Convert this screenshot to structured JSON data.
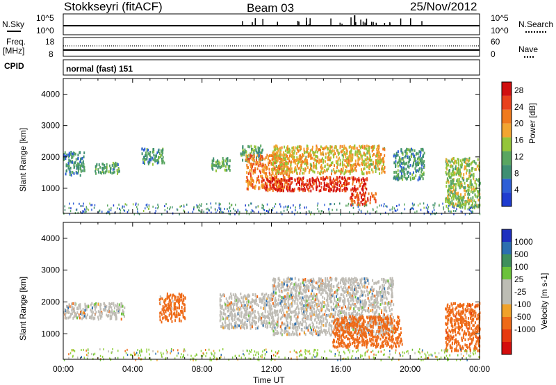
{
  "header": {
    "station": "Stokkseyri (fitACF)",
    "beam": "Beam 03",
    "date": "25/Nov/2012"
  },
  "nsky_panel": {
    "left_label": "N.Sky",
    "left_ticks": [
      "10^5",
      "10^0"
    ],
    "right_ticks": [
      "10^5",
      "10^0"
    ],
    "right_label": "N.Search"
  },
  "freq_panel": {
    "left_label_1": "Freq.",
    "left_label_2": "[MHz]",
    "left_ticks": [
      "18",
      "8"
    ],
    "right_ticks": [
      "60",
      "0"
    ],
    "right_label": "Nave"
  },
  "cpid_panel": {
    "label": "CPID",
    "mode": "normal (fast) 151"
  },
  "colors": {
    "power": [
      "#1f3cd0",
      "#2e5fd6",
      "#3f8f73",
      "#5aa661",
      "#94c53a",
      "#f2a531",
      "#f07a1d",
      "#e9411c",
      "#d10f0f"
    ],
    "velocity_scale": [
      "#1e2fbf",
      "#2c6fb0",
      "#3f8f5c",
      "#6cc23b",
      "#bdbdb4",
      "#bdbdb4",
      "#f0a22a",
      "#ee6a18",
      "#e63a10",
      "#d40d0d"
    ],
    "ground_scatter": "#bfbcb5"
  },
  "chart_data": [
    {
      "type": "heatmap",
      "name": "power",
      "xlabel": "",
      "ylabel": "Slant Range [km]",
      "x_ticks": [
        "00:00",
        "04:00",
        "08:00",
        "12:00",
        "16:00",
        "20:00",
        "00:00"
      ],
      "xlim_hours": [
        0,
        24
      ],
      "ylim_km": [
        200,
        4500
      ],
      "y_ticks": [
        1000,
        2000,
        3000,
        4000
      ],
      "colorbar": {
        "label": "Power [dB]",
        "ticks": [
          4,
          8,
          12,
          16,
          20,
          24,
          28
        ],
        "range": [
          0,
          30
        ]
      },
      "regions": [
        {
          "t": [
            0.0,
            1.2
          ],
          "r": [
            1450,
            2200
          ],
          "level": 8
        },
        {
          "t": [
            1.8,
            3.2
          ],
          "r": [
            1500,
            1850
          ],
          "level": 10
        },
        {
          "t": [
            4.5,
            5.8
          ],
          "r": [
            1800,
            2300
          ],
          "level": 9
        },
        {
          "t": [
            8.5,
            9.6
          ],
          "r": [
            1600,
            2000
          ],
          "level": 11
        },
        {
          "t": [
            10.2,
            11.5
          ],
          "r": [
            1900,
            2400
          ],
          "level": 10
        },
        {
          "t": [
            10.5,
            13.0
          ],
          "r": [
            1000,
            2100
          ],
          "level": 22
        },
        {
          "t": [
            11.5,
            17.5
          ],
          "r": [
            950,
            1400
          ],
          "level": 28
        },
        {
          "t": [
            12.0,
            18.5
          ],
          "r": [
            1500,
            2400
          ],
          "level": 18
        },
        {
          "t": [
            16.5,
            18.0
          ],
          "r": [
            500,
            900
          ],
          "level": 26
        },
        {
          "t": [
            19.0,
            20.8
          ],
          "r": [
            1300,
            2300
          ],
          "level": 9
        },
        {
          "t": [
            22.0,
            24.0
          ],
          "r": [
            400,
            2000
          ],
          "level": 14
        }
      ]
    },
    {
      "type": "heatmap",
      "name": "velocity",
      "xlabel": "Time UT",
      "ylabel": "Slant Range [km]",
      "x_ticks": [
        "00:00",
        "04:00",
        "08:00",
        "12:00",
        "16:00",
        "20:00",
        "00:00"
      ],
      "xlim_hours": [
        0,
        24
      ],
      "ylim_km": [
        200,
        4500
      ],
      "y_ticks": [
        1000,
        2000,
        3000,
        4000
      ],
      "colorbar": {
        "label": "Velocity [m s-1]",
        "ticks": [
          "1000",
          "500",
          "100",
          "25",
          "-25",
          "-100",
          "-500",
          "-1000"
        ]
      },
      "regions": [
        {
          "t": [
            0.0,
            3.5
          ],
          "r": [
            1500,
            2000
          ],
          "velocity": 0
        },
        {
          "t": [
            5.5,
            7.0
          ],
          "r": [
            1400,
            2300
          ],
          "velocity": -150
        },
        {
          "t": [
            9.0,
            12.0
          ],
          "r": [
            1200,
            2300
          ],
          "velocity": 0
        },
        {
          "t": [
            12.0,
            19.0
          ],
          "r": [
            1000,
            2800
          ],
          "velocity": 0
        },
        {
          "t": [
            15.5,
            19.5
          ],
          "r": [
            600,
            1600
          ],
          "velocity": -300
        },
        {
          "t": [
            22.0,
            24.0
          ],
          "r": [
            500,
            2000
          ],
          "velocity": -400
        }
      ]
    }
  ]
}
